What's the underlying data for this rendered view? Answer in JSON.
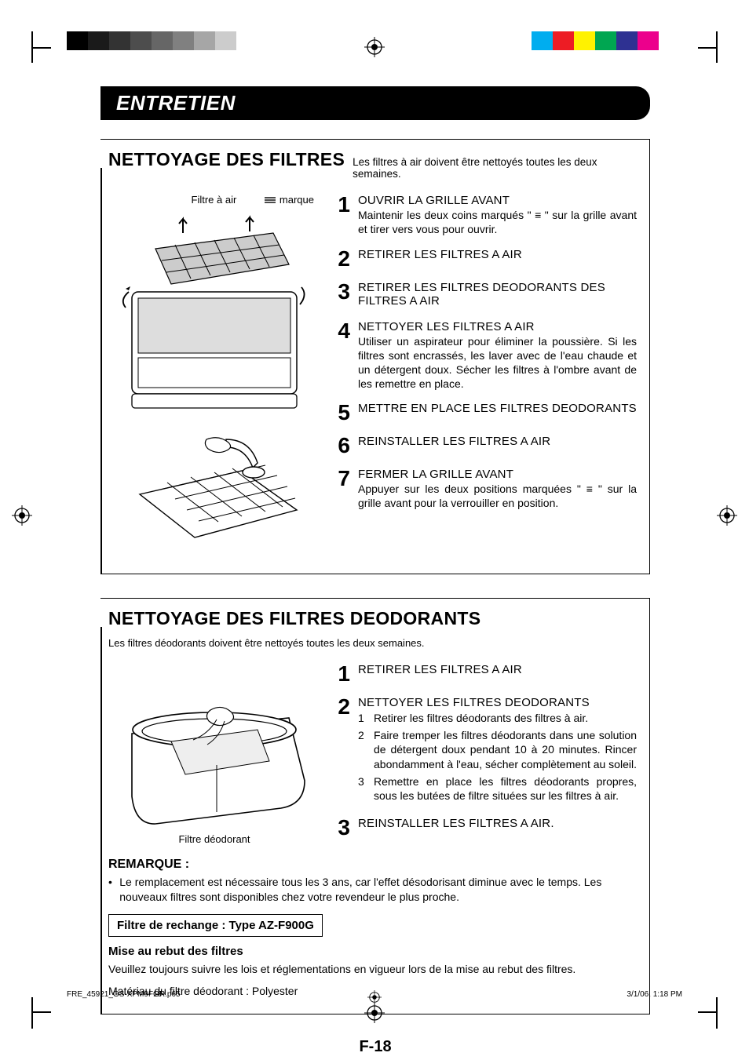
{
  "print": {
    "grayscale_swatches": [
      "#000000",
      "#1a1a1a",
      "#333333",
      "#4d4d4d",
      "#666666",
      "#808080",
      "#a6a6a6",
      "#cccccc"
    ],
    "color_swatches": [
      "#00adef",
      "#ed1c24",
      "#fff200",
      "#00a651",
      "#2e3192",
      "#ec008c"
    ],
    "reg_mark_color": "#000000"
  },
  "page_title": "ENTRETIEN",
  "page_number": "F-18",
  "section1": {
    "heading": "NETTOYAGE DES FILTRES",
    "subheading": "Les filtres à air doivent être nettoyés toutes les deux semaines.",
    "labels": {
      "filter": "Filtre à air",
      "mark": "marque"
    },
    "steps": [
      {
        "n": "1",
        "title": "OUVRIR LA GRILLE AVANT",
        "desc": "Maintenir les deux coins marqués \" ≡ \" sur la grille avant et tirer vers vous pour ouvrir."
      },
      {
        "n": "2",
        "title": "RETIRER LES FILTRES A AIR",
        "desc": ""
      },
      {
        "n": "3",
        "title": "RETIRER LES FILTRES DEODORANTS DES FILTRES A AIR",
        "desc": ""
      },
      {
        "n": "4",
        "title": "NETTOYER LES FILTRES A AIR",
        "desc": "Utiliser un aspirateur pour éliminer la poussière. Si les filtres sont encrassés, les laver avec de l'eau chaude et un détergent doux. Sécher les filtres à l'ombre avant de les remettre en place."
      },
      {
        "n": "5",
        "title": "METTRE EN PLACE LES FILTRES DEODORANTS",
        "desc": ""
      },
      {
        "n": "6",
        "title": "REINSTALLER LES FILTRES A AIR",
        "desc": ""
      },
      {
        "n": "7",
        "title": "FERMER LA GRILLE AVANT",
        "desc": "Appuyer sur les deux positions marquées \" ≡ \" sur la grille avant pour la verrouiller en position."
      }
    ]
  },
  "section2": {
    "heading": "NETTOYAGE DES FILTRES DEODORANTS",
    "subheading": "Les filtres déodorants doivent être nettoyés toutes les deux semaines.",
    "label": "Filtre déodorant",
    "steps": [
      {
        "n": "1",
        "title": "RETIRER LES FILTRES A AIR",
        "desc": ""
      },
      {
        "n": "2",
        "title": "NETTOYER LES FILTRES DEODORANTS",
        "subs": [
          {
            "sn": "1",
            "t": "Retirer les filtres déodorants des filtres à air."
          },
          {
            "sn": "2",
            "t": "Faire tremper les filtres déodorants dans une solution de détergent doux pendant 10 à 20 minutes. Rincer abondamment à l'eau, sécher complètement au soleil."
          },
          {
            "sn": "3",
            "t": "Remettre en place les filtres déodorants propres, sous les butées de filtre situées sur les filtres à air."
          }
        ]
      },
      {
        "n": "3",
        "title": "REINSTALLER LES FILTRES A AIR.",
        "desc": ""
      }
    ],
    "remark_heading": "REMARQUE :",
    "remark_text": "Le remplacement est nécessaire tous les 3 ans, car l'effet désodorisant diminue avec le temps. Les nouveaux filtres sont disponibles chez votre revendeur le plus proche.",
    "replacement": "Filtre de rechange : Type AZ-F900G",
    "disposal_heading": "Mise au rebut des filtres",
    "disposal_text1": "Veuillez toujours suivre les lois et réglementations en vigueur lors de la mise au rebut des filtres.",
    "disposal_text2": "Matériau du filtre déodorant : Polyester"
  },
  "footer": {
    "file": "FRE_45921_GS-XPM9FGR.p65",
    "page": "18",
    "datetime": "3/1/06, 1:18 PM"
  }
}
